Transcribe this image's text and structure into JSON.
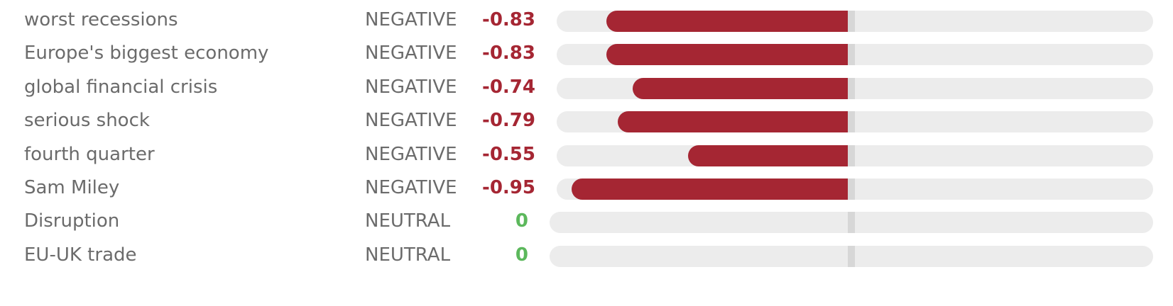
{
  "colors": {
    "negative": "#a52633",
    "neutral": "#5cb85c",
    "track": "#ececec",
    "zero_marker": "#d7d7d7",
    "label_text": "#6b6b6b"
  },
  "entities": [
    {
      "term": "worst recessions",
      "sentiment": "NEGATIVE",
      "score": -0.83,
      "score_label": "-0.83"
    },
    {
      "term": "Europe's biggest economy",
      "sentiment": "NEGATIVE",
      "score": -0.83,
      "score_label": "-0.83"
    },
    {
      "term": "global financial crisis",
      "sentiment": "NEGATIVE",
      "score": -0.74,
      "score_label": "-0.74"
    },
    {
      "term": "serious shock",
      "sentiment": "NEGATIVE",
      "score": -0.79,
      "score_label": "-0.79"
    },
    {
      "term": "fourth quarter",
      "sentiment": "NEGATIVE",
      "score": -0.55,
      "score_label": "-0.55"
    },
    {
      "term": "Sam Miley",
      "sentiment": "NEGATIVE",
      "score": -0.95,
      "score_label": "-0.95"
    },
    {
      "term": "Disruption",
      "sentiment": "NEUTRAL",
      "score": 0,
      "score_label": "0"
    },
    {
      "term": "EU-UK trade",
      "sentiment": "NEUTRAL",
      "score": 0,
      "score_label": "0"
    }
  ]
}
